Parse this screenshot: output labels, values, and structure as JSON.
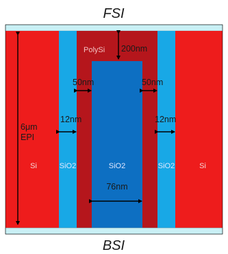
{
  "top_label": "FSI",
  "bottom_label": "BSI",
  "labels": {
    "polysi": "PolySi",
    "dim_200nm": "200nm",
    "dim_50nm_left": "50nm",
    "dim_50nm_right": "50nm",
    "dim_12nm_left": "12nm",
    "dim_12nm_right": "12nm",
    "epi_6um": "6μm",
    "epi": "EPI",
    "si_left": "Si",
    "si_right": "Si",
    "sio2_left": "SiO2",
    "sio2_center": "SiO2",
    "sio2_right": "SiO2",
    "dim_76nm": "76nm"
  },
  "colors": {
    "si": "#ee1c1c",
    "polysi": "#b5161c",
    "sio2_liner": "#18a8e6",
    "sio2_core": "#0d6fc2",
    "cap": "#c9f0f5",
    "outline": "#000000"
  }
}
